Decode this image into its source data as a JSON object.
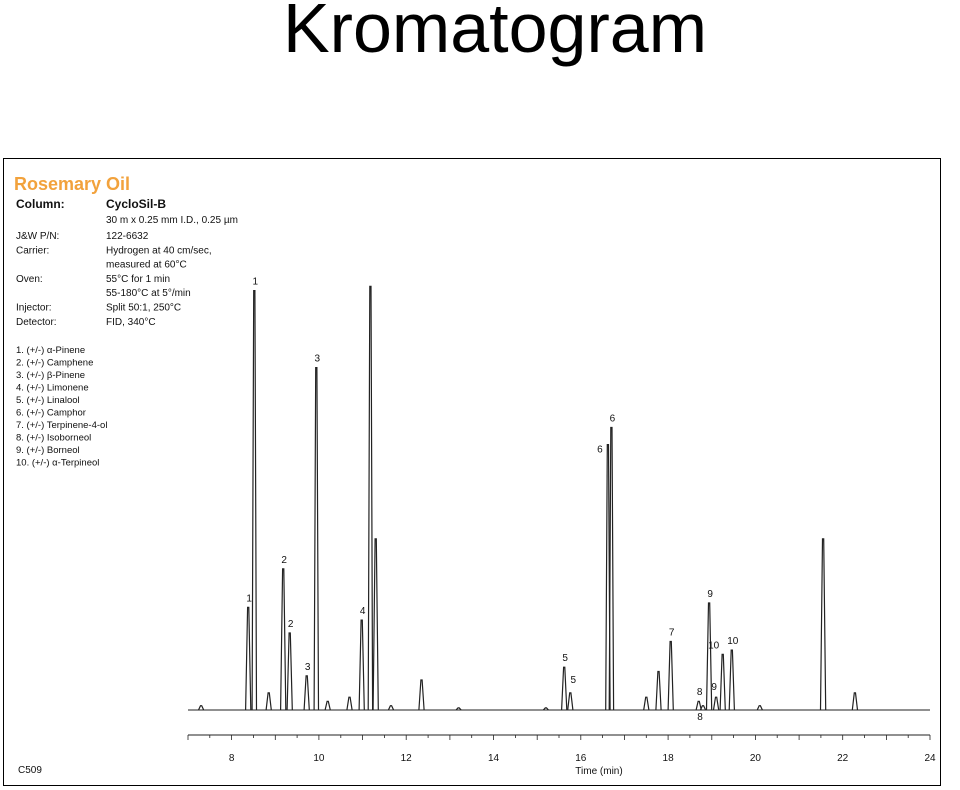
{
  "slide": {
    "title": "Kromatogram"
  },
  "figure": {
    "sample_name": "Rosemary Oil",
    "column_key": "Column:",
    "column_value": "CycloSil-B",
    "column_spec": "30 m x 0.25 mm I.D., 0.25 µm",
    "conditions": [
      {
        "key": "J&W P/N:",
        "value": "122-6632"
      },
      {
        "key": "Carrier:",
        "value": "Hydrogen at 40 cm/sec,"
      },
      {
        "key": "",
        "value": "measured at 60°C"
      },
      {
        "key": "Oven:",
        "value": "55°C for 1 min"
      },
      {
        "key": "",
        "value": "55-180°C at 5°/min"
      },
      {
        "key": "Injector:",
        "value": "Split 50:1, 250°C"
      },
      {
        "key": "Detector:",
        "value": "FID, 340°C"
      }
    ],
    "compound_list": [
      "1.  (+/-) α-Pinene",
      "2.  (+/-) Camphene",
      "3.  (+/-) β-Pinene",
      "4.  (+/-) Limonene",
      "5.  (+/-) Linalool",
      "6.  (+/-) Camphor",
      "7.  (+/-) Terpinene-4-ol",
      "8.  (+/-) Isoborneol",
      "9.  (+/-) Borneol",
      "10. (+/-) α-Terpineol"
    ],
    "code": "C509"
  },
  "chart_data": {
    "type": "line",
    "xlabel": "Time (min)",
    "xlim": [
      7,
      24
    ],
    "xticks": [
      8,
      10,
      12,
      14,
      16,
      18,
      20,
      22,
      24
    ],
    "ylim": [
      0,
      1
    ],
    "grid": false,
    "peaks": [
      {
        "t": 7.3,
        "h": 0.01
      },
      {
        "t": 8.38,
        "h": 0.24,
        "label": "1"
      },
      {
        "t": 8.52,
        "h": 0.98,
        "label": "1"
      },
      {
        "t": 8.85,
        "h": 0.04
      },
      {
        "t": 9.18,
        "h": 0.33,
        "label": "2"
      },
      {
        "t": 9.33,
        "h": 0.18,
        "label": "2"
      },
      {
        "t": 9.72,
        "h": 0.08,
        "label": "3"
      },
      {
        "t": 9.94,
        "h": 0.8,
        "label": "3"
      },
      {
        "t": 10.2,
        "h": 0.02
      },
      {
        "t": 10.7,
        "h": 0.03
      },
      {
        "t": 10.98,
        "h": 0.21,
        "label": "4"
      },
      {
        "t": 11.18,
        "h": 0.99
      },
      {
        "t": 11.3,
        "h": 0.4
      },
      {
        "t": 11.65,
        "h": 0.01
      },
      {
        "t": 12.35,
        "h": 0.07
      },
      {
        "t": 13.2,
        "h": 0.005
      },
      {
        "t": 15.2,
        "h": 0.005
      },
      {
        "t": 15.62,
        "h": 0.1,
        "label": "5"
      },
      {
        "t": 15.76,
        "h": 0.04,
        "label": "5"
      },
      {
        "t": 16.62,
        "h": 0.62,
        "label": "6"
      },
      {
        "t": 16.7,
        "h": 0.66,
        "label": "6"
      },
      {
        "t": 17.5,
        "h": 0.03
      },
      {
        "t": 17.78,
        "h": 0.09
      },
      {
        "t": 18.06,
        "h": 0.16,
        "label": "7"
      },
      {
        "t": 18.7,
        "h": 0.02,
        "label": "8"
      },
      {
        "t": 18.8,
        "h": 0.01,
        "label": "8"
      },
      {
        "t": 18.94,
        "h": 0.25,
        "label": "9"
      },
      {
        "t": 19.1,
        "h": 0.03,
        "label": "9"
      },
      {
        "t": 19.25,
        "h": 0.13,
        "label": "10"
      },
      {
        "t": 19.46,
        "h": 0.14,
        "label": "10"
      },
      {
        "t": 20.1,
        "h": 0.01
      },
      {
        "t": 21.55,
        "h": 0.4
      },
      {
        "t": 22.28,
        "h": 0.04
      }
    ]
  }
}
